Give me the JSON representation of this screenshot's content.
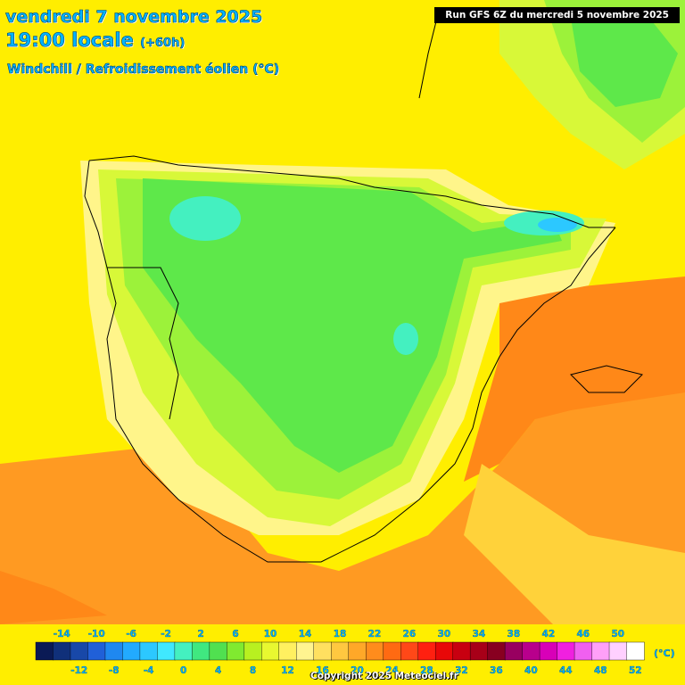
{
  "title": {
    "date": "vendredi 7 novembre 2025",
    "time": "19:00 locale",
    "lead": "(+60h)",
    "parameter": "Windchill / Refroidissement éolien (°C)"
  },
  "run_label": "Run GFS 6Z du mercredi 5 novembre 2025",
  "copyright": "Copyright 2025 Meteociel.fr",
  "legend": {
    "unit": "(°C)",
    "top_labels": [
      "-14",
      "-10",
      "-6",
      "-2",
      "2",
      "6",
      "10",
      "14",
      "18",
      "22",
      "26",
      "30",
      "34",
      "38",
      "42",
      "46",
      "50"
    ],
    "bottom_labels": [
      "-12",
      "-8",
      "-4",
      "0",
      "4",
      "8",
      "12",
      "16",
      "20",
      "24",
      "28",
      "32",
      "36",
      "40",
      "44",
      "48",
      "52"
    ],
    "colors": [
      "#0a1a55",
      "#10307a",
      "#1848a8",
      "#2060d8",
      "#1f88f0",
      "#22aaff",
      "#2cc8ff",
      "#40e8ff",
      "#44f0c0",
      "#40e880",
      "#50e050",
      "#80ea30",
      "#b8f020",
      "#e8f830",
      "#fff060",
      "#fff490",
      "#ffe060",
      "#ffc840",
      "#ffa828",
      "#ff8c1c",
      "#ff6a12",
      "#ff4818",
      "#ff2010",
      "#e80808",
      "#c80010",
      "#a80018",
      "#880020",
      "#980060",
      "#b8008c",
      "#d800b8",
      "#f020e0",
      "#f060f0",
      "#ffa0f8",
      "#ffd0ff",
      "#ffffff"
    ]
  },
  "map": {
    "region": "Iberian Peninsula",
    "palette": {
      "green": "#5ee84a",
      "lightgreen": "#9cf23a",
      "yellowgreen": "#d8f838",
      "yellow": "#ffee00",
      "lightyellow": "#fff58a",
      "gold": "#ffd23a",
      "orange": "#ff9a22",
      "darkorange": "#ff8818",
      "sea": "#ffee00"
    }
  }
}
